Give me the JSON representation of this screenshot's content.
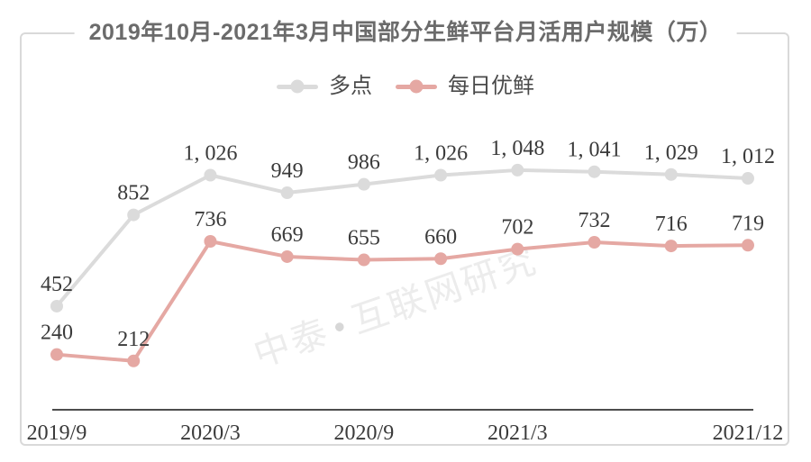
{
  "title": "2019年10月-2021年3月中国部分生鲜平台月活用户规模（万）",
  "watermark": {
    "prefix": "中泰",
    "dot": "•",
    "suffix": "互联网研究"
  },
  "colors": {
    "frame_border": "#d9d9d9",
    "title_text": "#6b6b6b",
    "axis_line": "#4d4d4d",
    "data_label_text": "#3a3a3a",
    "tick_label_text": "#3a3a3a",
    "watermark_text": "#ececec",
    "watermark_dot": "#d7d7d7",
    "series_duodian": "#dbdbdb",
    "series_meiriyouxian": "#e5a8a3"
  },
  "chart_data": {
    "type": "line",
    "title": "2019年10月-2021年3月中国部分生鲜平台月活用户规模（万）",
    "xlabel": "",
    "ylabel": "",
    "ylim": [
      0,
      1150
    ],
    "grid": false,
    "legend_position": "top-center",
    "x_axis_ticks": [
      {
        "label": "2019/9",
        "point_index": 0
      },
      {
        "label": "2020/3",
        "point_index": 2
      },
      {
        "label": "2020/9",
        "point_index": 4
      },
      {
        "label": "2021/3",
        "point_index": 6
      },
      {
        "label": "2021/12",
        "point_index": 9
      }
    ],
    "series": [
      {
        "name": "多点",
        "color": "#dbdbdb",
        "values": [
          452,
          852,
          1026,
          949,
          986,
          1026,
          1048,
          1041,
          1029,
          1012
        ],
        "labels": [
          "452",
          "852",
          "1, 026",
          "949",
          "986",
          "1, 026",
          "1, 048",
          "1, 041",
          "1, 029",
          "1, 012"
        ]
      },
      {
        "name": "每日优鲜",
        "color": "#e5a8a3",
        "values": [
          240,
          212,
          736,
          669,
          655,
          660,
          702,
          732,
          716,
          719
        ],
        "labels": [
          "240",
          "212",
          "736",
          "669",
          "655",
          "660",
          "702",
          "732",
          "716",
          "719"
        ]
      }
    ]
  }
}
